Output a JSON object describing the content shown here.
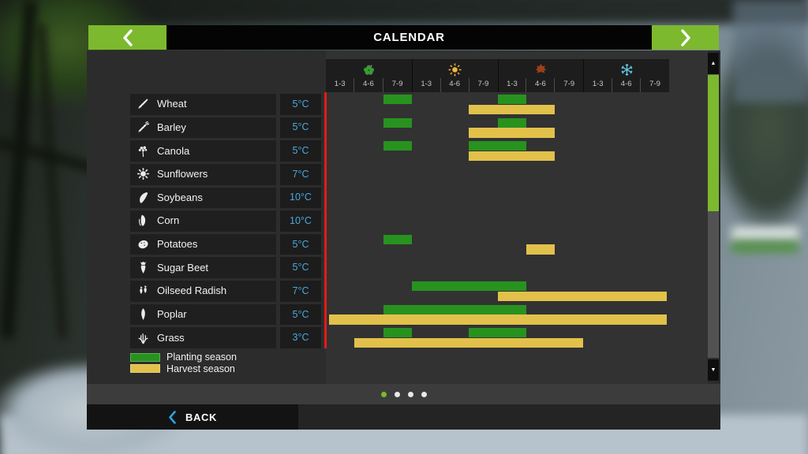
{
  "window": {
    "title": "CALENDAR"
  },
  "colors": {
    "accent_green": "#7cb92e",
    "planting": "#28921f",
    "harvest": "#e2c14b",
    "temperature_text": "#4aa8dd",
    "current_day_line": "#e11b1b",
    "back_chevron": "#2e9fe0",
    "season_spring": "#3a9b35",
    "season_summer": "#f2b53c",
    "season_autumn": "#9c4018",
    "season_winter": "#62c8e8"
  },
  "seasons": [
    {
      "name": "spring",
      "icon": "spring-flower-icon",
      "ticks": [
        "1-3",
        "4-6",
        "7-9"
      ]
    },
    {
      "name": "summer",
      "icon": "sun-icon",
      "ticks": [
        "1-3",
        "4-6",
        "7-9"
      ]
    },
    {
      "name": "autumn",
      "icon": "autumn-leaf-icon",
      "ticks": [
        "1-3",
        "4-6",
        "7-9"
      ]
    },
    {
      "name": "winter",
      "icon": "snowflake-icon",
      "ticks": [
        "1-3",
        "4-6",
        "7-9"
      ]
    }
  ],
  "period_columns_per_season": 3,
  "crops": [
    {
      "name": "Wheat",
      "temperature": "5°C",
      "icon": "wheat-icon",
      "planting": [
        [
          2,
          3
        ],
        [
          6,
          7
        ]
      ],
      "harvest": [
        [
          5,
          8
        ]
      ]
    },
    {
      "name": "Barley",
      "temperature": "5°C",
      "icon": "barley-icon",
      "planting": [
        [
          2,
          3
        ],
        [
          6,
          7
        ]
      ],
      "harvest": [
        [
          5,
          8
        ]
      ]
    },
    {
      "name": "Canola",
      "temperature": "5°C",
      "icon": "canola-icon",
      "planting": [
        [
          2,
          3
        ],
        [
          5,
          7
        ]
      ],
      "harvest": [
        [
          5,
          8
        ]
      ]
    },
    {
      "name": "Sunflowers",
      "temperature": "7°C",
      "icon": "sunflower-icon",
      "planting": [],
      "harvest": []
    },
    {
      "name": "Soybeans",
      "temperature": "10°C",
      "icon": "soybean-icon",
      "planting": [],
      "harvest": []
    },
    {
      "name": "Corn",
      "temperature": "10°C",
      "icon": "corn-icon",
      "planting": [],
      "harvest": []
    },
    {
      "name": "Potatoes",
      "temperature": "5°C",
      "icon": "potato-icon",
      "planting": [
        [
          2,
          3
        ]
      ],
      "harvest": [
        [
          7,
          8
        ]
      ]
    },
    {
      "name": "Sugar Beet",
      "temperature": "5°C",
      "icon": "sugar-beet-icon",
      "planting": [],
      "harvest": []
    },
    {
      "name": "Oilseed Radish",
      "temperature": "7°C",
      "icon": "oilseed-radish-icon",
      "planting": [
        [
          3,
          7
        ]
      ],
      "harvest": [
        [
          6,
          12
        ]
      ]
    },
    {
      "name": "Poplar",
      "temperature": "5°C",
      "icon": "poplar-icon",
      "planting": [
        [
          2,
          7
        ]
      ],
      "harvest": [
        [
          0,
          12
        ]
      ]
    },
    {
      "name": "Grass",
      "temperature": "3°C",
      "icon": "grass-icon",
      "planting": [
        [
          2,
          3
        ],
        [
          5,
          7
        ]
      ],
      "harvest": [
        [
          1,
          9
        ]
      ]
    }
  ],
  "legend": [
    {
      "label": "Planting season",
      "color": "#28921f"
    },
    {
      "label": "Harvest season",
      "color": "#e2c14b"
    }
  ],
  "pagination": {
    "count": 4,
    "active": 0
  },
  "footer": {
    "back_label": "BACK"
  }
}
